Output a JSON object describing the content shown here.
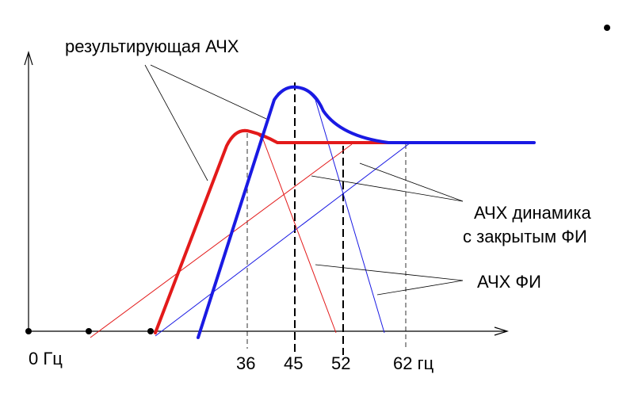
{
  "labels": {
    "resulting": "результирующая  АЧХ",
    "dynamic_line1": "АЧХ  динамика",
    "dynamic_line2": "с закрытым ФИ",
    "fi": "АЧХ  ФИ",
    "origin": "0 Гц"
  },
  "ticks": [
    "36",
    "45",
    "52",
    "62 гц"
  ],
  "colors": {
    "red": "#e31a1a",
    "blue": "#1a1ae3",
    "axis": "#000000"
  }
}
